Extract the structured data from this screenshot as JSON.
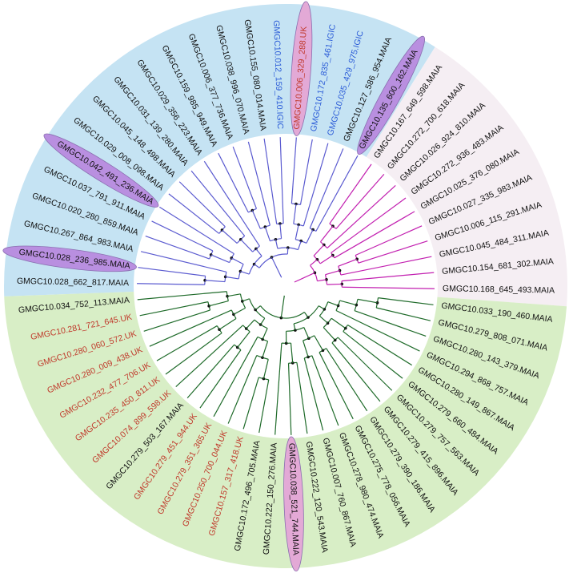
{
  "clades": [
    {
      "fill": "#c5e3f3",
      "branch": "#5b5bd0",
      "leaves": [
        {
          "label": "GMGC10.028_662_817.MAIA",
          "color": "#111111"
        },
        {
          "label": "GMGC10.028_236_985.MAIA",
          "color": "#111111",
          "highlight": "#b98fe0"
        },
        {
          "label": "GMGC10.267_864_983.MAIA",
          "color": "#111111"
        },
        {
          "label": "GMGC10.020_280_859.MAIA",
          "color": "#111111"
        },
        {
          "label": "GMGC10.037_791_911.MAIA",
          "color": "#111111"
        },
        {
          "label": "GMGC10.042_491_236.MAIA",
          "color": "#111111",
          "highlight": "#b98fe0"
        },
        {
          "label": "GMGC10.029_008_098.MAIA",
          "color": "#111111"
        },
        {
          "label": "GMGC10.045_148_498.MAIA",
          "color": "#111111"
        },
        {
          "label": "GMGC10.031_139_280.MAIA",
          "color": "#111111"
        },
        {
          "label": "GMGC10.029_356_223.MAIA",
          "color": "#111111"
        },
        {
          "label": "GMGC10.159_985_949.MAIA",
          "color": "#111111"
        },
        {
          "label": "GMGC10.006_377_736.MAIA",
          "color": "#111111"
        },
        {
          "label": "GMGC10.038_996_070.MAIA",
          "color": "#111111"
        },
        {
          "label": "GMGC10.155_080_014.MAIA",
          "color": "#111111"
        },
        {
          "label": "GMGC10.012_159_410.IGIC",
          "color": "#2a5bd7"
        },
        {
          "label": "GMGC10.006_329_288.UK",
          "color": "#c0392b",
          "highlight": "#e3a9d6"
        },
        {
          "label": "GMGC10.172_835_461.IGIC",
          "color": "#2a5bd7"
        },
        {
          "label": "GMGC10.035_429_975.IGIC",
          "color": "#2a5bd7"
        },
        {
          "label": "GMGC10.127_586_954.MAIA",
          "color": "#111111"
        },
        {
          "label": "GMGC10.135_600_162.MAIA",
          "color": "#111111",
          "highlight": "#b98fe0"
        }
      ]
    },
    {
      "fill": "#f5eef3",
      "branch": "#c21fb0",
      "leaves": [
        {
          "label": "GMGC10.167_649_598.MAIA",
          "color": "#111111"
        },
        {
          "label": "GMGC10.272_700_618.MAIA",
          "color": "#111111"
        },
        {
          "label": "GMGC10.026_924_810.MAIA",
          "color": "#111111"
        },
        {
          "label": "GMGC10.272_936_483.MAIA",
          "color": "#111111"
        },
        {
          "label": "GMGC10.025_376_080.MAIA",
          "color": "#111111"
        },
        {
          "label": "GMGC10.027_335_983.MAIA",
          "color": "#111111"
        },
        {
          "label": "GMGC10.006_115_291.MAIA",
          "color": "#111111"
        },
        {
          "label": "GMGC10.045_484_311.MAIA",
          "color": "#111111"
        },
        {
          "label": "GMGC10.154_681_302.MAIA",
          "color": "#111111"
        },
        {
          "label": "GMGC10.168_645_493.MAIA",
          "color": "#111111"
        }
      ]
    },
    {
      "fill": "#d8eec6",
      "branch": "#1f6b2a",
      "leaves": [
        {
          "label": "GMGC10.033_190_460.MAIA",
          "color": "#111111"
        },
        {
          "label": "GMGC10.279_808_071.MAIA",
          "color": "#111111"
        },
        {
          "label": "GMGC10.280_143_379.MAIA",
          "color": "#111111"
        },
        {
          "label": "GMGC10.294_868_757.MAIA",
          "color": "#111111"
        },
        {
          "label": "GMGC10.280_149_867.MAIA",
          "color": "#111111"
        },
        {
          "label": "GMGC10.279_660_484.MAIA",
          "color": "#111111"
        },
        {
          "label": "GMGC10.279_757_563.MAIA",
          "color": "#111111"
        },
        {
          "label": "GMGC10.279_415_896.MAIA",
          "color": "#111111"
        },
        {
          "label": "GMGC10.279_390_186.MAIA",
          "color": "#111111"
        },
        {
          "label": "GMGC10.275_778_056.MAIA",
          "color": "#111111"
        },
        {
          "label": "GMGC10.278_980_474.MAIA",
          "color": "#111111"
        },
        {
          "label": "GMGC10.007_760_867.MAIA",
          "color": "#111111"
        },
        {
          "label": "GMGC10.222_120_543.MAIA",
          "color": "#111111"
        },
        {
          "label": "GMGC10.038_521_744.MAIA",
          "color": "#111111",
          "highlight": "#e3a9d6"
        },
        {
          "label": "GMGC10.222_150_276.MAIA",
          "color": "#111111"
        },
        {
          "label": "GMGC10.172_496_705.MAIA",
          "color": "#111111"
        },
        {
          "label": "GMGC10.157_317_418.UK",
          "color": "#c0392b"
        },
        {
          "label": "GMGC10.250_700_044.UK",
          "color": "#c0392b"
        },
        {
          "label": "GMGC10.279_351_365.UK",
          "color": "#c0392b"
        },
        {
          "label": "GMGC10.279_451_944.UK",
          "color": "#c0392b"
        },
        {
          "label": "GMGC10.279_503_167.MAIA",
          "color": "#111111"
        },
        {
          "label": "GMGC10.074_899_598.UK",
          "color": "#c0392b"
        },
        {
          "label": "GMGC10.235_450_811.UK",
          "color": "#c0392b"
        },
        {
          "label": "GMGC10.232_477_706.UK",
          "color": "#c0392b"
        },
        {
          "label": "GMGC10.280_009_438.UK",
          "color": "#c0392b"
        },
        {
          "label": "GMGC10.280_060_572.UK",
          "color": "#c0392b"
        },
        {
          "label": "GMGC10.281_721_645.UK",
          "color": "#c0392b"
        },
        {
          "label": "GMGC10.034_752_113.MAIA",
          "color": "#111111"
        }
      ]
    }
  ]
}
